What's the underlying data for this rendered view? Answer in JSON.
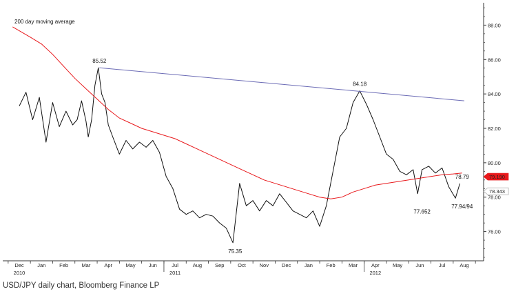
{
  "caption": "USD/JPY daily chart, Bloomberg Finance LP",
  "chart_data": {
    "type": "line",
    "title": "",
    "xlabel": "",
    "ylabel": "",
    "ylim": [
      74.3,
      89.3
    ],
    "y_ticks": [
      "88.00",
      "86.00",
      "84.00",
      "82.00",
      "80.00",
      "78.00",
      "76.00"
    ],
    "y_tick_values": [
      88,
      86,
      84,
      82,
      80,
      78,
      76
    ],
    "x_months": [
      "Dec",
      "Jan",
      "Feb",
      "Mar",
      "Apr",
      "May",
      "Jun",
      "Jul",
      "Aug",
      "Sep",
      "Oct",
      "Nov",
      "Dec",
      "Jan",
      "Feb",
      "Mar",
      "Apr",
      "May",
      "Jun",
      "Jul",
      "Aug"
    ],
    "x_years": [
      {
        "label": "2010",
        "month_index": 0
      },
      {
        "label": "2011",
        "month_index": 7
      },
      {
        "label": "2012",
        "month_index": 16
      }
    ],
    "grid": false,
    "price_x": [
      0,
      0.3,
      0.6,
      0.9,
      1.2,
      1.5,
      1.8,
      2.1,
      2.4,
      2.6,
      2.8,
      3.0,
      3.1,
      3.25,
      3.4,
      3.55,
      3.7,
      3.85,
      4.0,
      4.2,
      4.5,
      4.8,
      5.1,
      5.4,
      5.7,
      6.0,
      6.3,
      6.6,
      6.9,
      7.2,
      7.5,
      7.8,
      8.1,
      8.4,
      8.7,
      9.0,
      9.3,
      9.6,
      9.9,
      10.2,
      10.5,
      10.8,
      11.1,
      11.4,
      11.7,
      12.0,
      12.3,
      12.6,
      12.9,
      13.2,
      13.5,
      13.8,
      14.1,
      14.4,
      14.7,
      15.0,
      15.3,
      15.6,
      15.9,
      16.2,
      16.5,
      16.8,
      17.1,
      17.4,
      17.7,
      17.9,
      18.1,
      18.4,
      18.7,
      19.0,
      19.3,
      19.6,
      19.8
    ],
    "price_values": [
      83.3,
      84.1,
      82.5,
      83.8,
      81.2,
      83.5,
      82.1,
      83.0,
      82.2,
      82.5,
      83.6,
      82.4,
      81.5,
      82.5,
      84.5,
      85.52,
      84.0,
      83.5,
      82.2,
      81.5,
      80.5,
      81.3,
      80.8,
      81.2,
      80.9,
      81.3,
      80.6,
      79.2,
      78.5,
      77.3,
      77.0,
      77.2,
      76.8,
      77.0,
      76.9,
      76.5,
      76.2,
      75.35,
      78.8,
      77.5,
      77.8,
      77.2,
      77.8,
      77.5,
      78.2,
      77.7,
      77.2,
      77.0,
      76.8,
      77.2,
      76.3,
      77.5,
      79.5,
      81.5,
      82.0,
      83.5,
      84.18,
      83.4,
      82.5,
      81.5,
      80.5,
      80.2,
      79.5,
      79.3,
      79.6,
      78.2,
      79.6,
      79.8,
      79.4,
      79.7,
      78.6,
      77.94,
      78.79
    ],
    "series": [
      {
        "name": "200 day moving average",
        "color": "#e8191c",
        "x": [
          -0.3,
          0.5,
          1.0,
          1.5,
          2.0,
          2.5,
          3.0,
          3.5,
          4.0,
          4.5,
          5.0,
          5.5,
          6.0,
          6.5,
          7.0,
          7.5,
          8.0,
          8.5,
          9.0,
          9.5,
          10.0,
          10.5,
          11.0,
          11.5,
          12.0,
          12.5,
          13.0,
          13.5,
          14.0,
          14.5,
          15.0,
          15.5,
          16.0,
          16.5,
          17.0,
          17.5,
          18.0,
          18.5,
          19.0,
          19.5,
          19.9
        ],
        "values": [
          87.9,
          87.3,
          86.9,
          86.3,
          85.6,
          84.9,
          84.3,
          83.7,
          83.1,
          82.6,
          82.3,
          82.0,
          81.8,
          81.6,
          81.4,
          81.1,
          80.8,
          80.5,
          80.2,
          79.9,
          79.6,
          79.3,
          79.0,
          78.8,
          78.6,
          78.4,
          78.2,
          78.0,
          77.9,
          78.0,
          78.3,
          78.5,
          78.7,
          78.8,
          78.9,
          79.0,
          79.1,
          79.2,
          79.3,
          79.35,
          79.4
        ]
      },
      {
        "name": "trendline",
        "color": "#6b6bb5",
        "x": [
          3.6,
          20.0
        ],
        "values": [
          85.52,
          83.6
        ]
      }
    ],
    "annotations": [
      {
        "text": "85.52",
        "x": 3.6,
        "y": 85.52,
        "pos": "above"
      },
      {
        "text": "84.18",
        "x": 15.3,
        "y": 84.18,
        "pos": "above"
      },
      {
        "text": "75.35",
        "x": 9.7,
        "y": 75.35,
        "pos": "below"
      },
      {
        "text": "77.652",
        "x": 18.1,
        "y": 77.652,
        "pos": "below"
      },
      {
        "text": "77.94/94",
        "x": 19.9,
        "y": 77.94,
        "pos": "below"
      },
      {
        "text": "78.79",
        "x": 19.9,
        "y": 78.79,
        "pos": "above"
      }
    ],
    "legend": {
      "text": "200 day moving average",
      "color": "#e8191c",
      "placement": "top-left"
    },
    "right_markers": [
      {
        "text": "79.190",
        "value": 79.19,
        "fill": "#e8191c",
        "text_color": "#ffffff"
      },
      {
        "text": "78.343",
        "value": 78.343,
        "fill": "#ffffff",
        "text_color": "#222222"
      }
    ],
    "colors": {
      "price": "#111111",
      "axis": "#333333"
    }
  }
}
